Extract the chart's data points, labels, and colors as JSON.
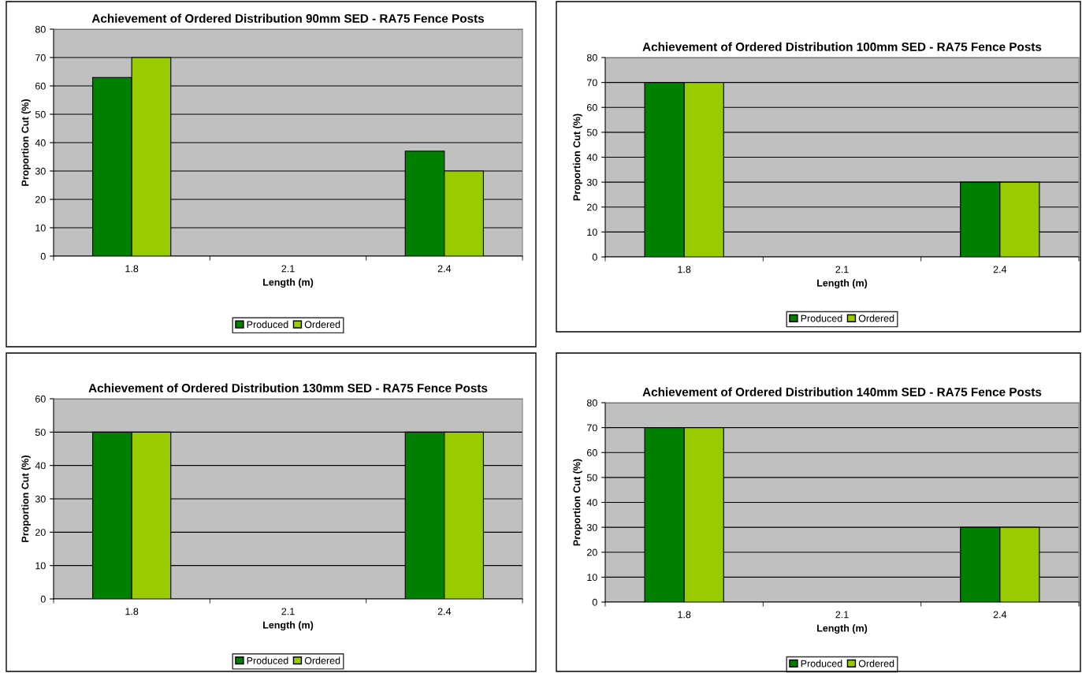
{
  "chart_data": [
    {
      "type": "bar",
      "title": "Achievement of Ordered Distribution 90mm SED - RA75 Fence Posts",
      "xlabel": "Length (m)",
      "ylabel": "Proportion Cut (%)",
      "categories": [
        "1.8",
        "2.1",
        "2.4"
      ],
      "series": [
        {
          "name": "Produced",
          "color": "#008000",
          "values": [
            63,
            null,
            37
          ]
        },
        {
          "name": "Ordered",
          "color": "#99cc00",
          "values": [
            70,
            null,
            30
          ]
        }
      ],
      "ylim": [
        0,
        80
      ],
      "yticks": [
        0,
        10,
        20,
        30,
        40,
        50,
        60,
        70,
        80
      ],
      "grid": "y",
      "legend": "bottom"
    },
    {
      "type": "bar",
      "title": "Achievement of Ordered Distribution 100mm SED - RA75 Fence Posts",
      "xlabel": "Length (m)",
      "ylabel": "Proportion Cut (%)",
      "categories": [
        "1.8",
        "2.1",
        "2.4"
      ],
      "series": [
        {
          "name": "Produced",
          "color": "#008000",
          "values": [
            70,
            null,
            30
          ]
        },
        {
          "name": "Ordered",
          "color": "#99cc00",
          "values": [
            70,
            null,
            30
          ]
        }
      ],
      "ylim": [
        0,
        80
      ],
      "yticks": [
        0,
        10,
        20,
        30,
        40,
        50,
        60,
        70,
        80
      ],
      "grid": "y",
      "legend": "bottom"
    },
    {
      "type": "bar",
      "title": "Achievement of Ordered Distribution 130mm SED - RA75 Fence Posts",
      "xlabel": "Length (m)",
      "ylabel": "Proportion Cut (%)",
      "categories": [
        "1.8",
        "2.1",
        "2.4"
      ],
      "series": [
        {
          "name": "Produced",
          "color": "#008000",
          "values": [
            50,
            null,
            50
          ]
        },
        {
          "name": "Ordered",
          "color": "#99cc00",
          "values": [
            50,
            null,
            50
          ]
        }
      ],
      "ylim": [
        0,
        60
      ],
      "yticks": [
        0,
        10,
        20,
        30,
        40,
        50,
        60
      ],
      "grid": "y",
      "legend": "bottom"
    },
    {
      "type": "bar",
      "title": "Achievement of Ordered Distribution 140mm SED - RA75 Fence Posts",
      "xlabel": "Length (m)",
      "ylabel": "Proportion Cut (%)",
      "categories": [
        "1.8",
        "2.1",
        "2.4"
      ],
      "series": [
        {
          "name": "Produced",
          "color": "#008000",
          "values": [
            70,
            null,
            30
          ]
        },
        {
          "name": "Ordered",
          "color": "#99cc00",
          "values": [
            70,
            null,
            30
          ]
        }
      ],
      "ylim": [
        0,
        80
      ],
      "yticks": [
        0,
        10,
        20,
        30,
        40,
        50,
        60,
        70,
        80
      ],
      "grid": "y",
      "legend": "bottom"
    }
  ]
}
